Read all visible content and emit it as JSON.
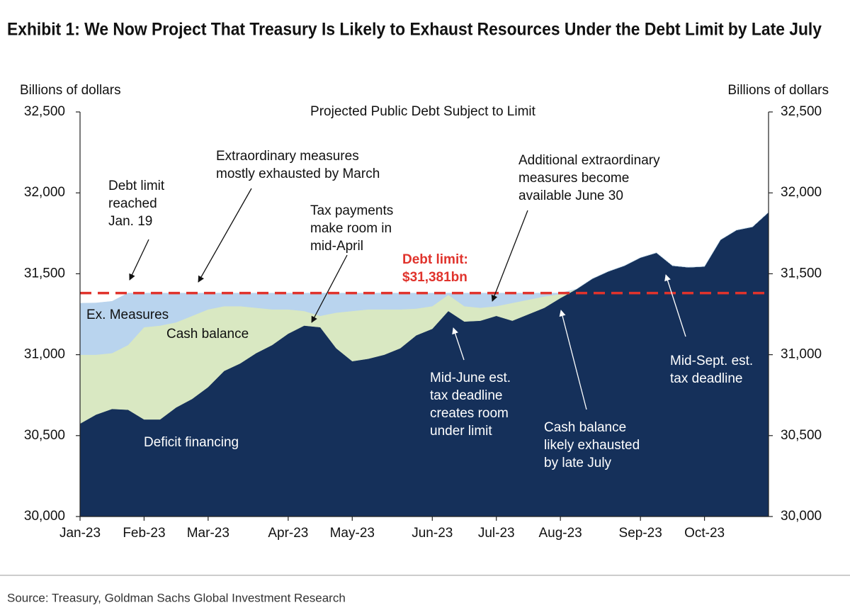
{
  "chart_data": {
    "type": "stacked_area",
    "title": "Exhibit 1: We Now Project That Treasury Is Likely to Exhaust Resources Under the Debt Limit by Late July",
    "subtitle": "Projected Public Debt Subject to Limit",
    "ylabel": "Billions of dollars",
    "y2label": "Billions of dollars",
    "source": "Source: Treasury, Goldman Sachs Global Investment Research",
    "categories": [
      "Jan-23",
      null,
      null,
      null,
      "Feb-23",
      null,
      null,
      null,
      "Mar-23",
      null,
      null,
      null,
      null,
      "Apr-23",
      null,
      null,
      null,
      "May-23",
      null,
      null,
      null,
      null,
      "Jun-23",
      null,
      null,
      null,
      "Jul-23",
      null,
      null,
      null,
      "Aug-23",
      null,
      null,
      null,
      null,
      "Sep-23",
      null,
      null,
      null,
      "Oct-23",
      null,
      null,
      null,
      null
    ],
    "series": [
      {
        "name": "Deficit financing",
        "color": "#15305a",
        "values": [
          30574,
          30630,
          30665,
          30660,
          30600,
          30600,
          30674,
          30727,
          30800,
          30900,
          30946,
          31010,
          31060,
          31130,
          31180,
          31170,
          31040,
          30960,
          30975,
          31000,
          31040,
          31120,
          31160,
          31270,
          31205,
          31210,
          31240,
          31210,
          31250,
          31290,
          31350,
          31405,
          31470,
          31515,
          31550,
          31600,
          31630,
          31550,
          31540,
          31545,
          31710,
          31770,
          31790,
          31880
        ]
      },
      {
        "name": "Cash balance",
        "color": "#d9e8c2",
        "values": [
          426,
          370,
          345,
          400,
          570,
          580,
          526,
          513,
          480,
          400,
          354,
          280,
          220,
          150,
          90,
          70,
          220,
          310,
          305,
          280,
          240,
          165,
          140,
          100,
          95,
          80,
          60,
          110,
          90,
          70,
          25,
          0,
          0,
          0,
          0,
          0,
          0,
          0,
          0,
          0,
          0,
          0,
          0,
          0
        ]
      },
      {
        "name": "Ex. Measures",
        "color": "#b9d4ee",
        "values": [
          318,
          320,
          320,
          321,
          211,
          201,
          181,
          141,
          101,
          81,
          81,
          91,
          101,
          101,
          111,
          141,
          121,
          111,
          101,
          101,
          101,
          96,
          81,
          11,
          81,
          91,
          81,
          61,
          41,
          21,
          6,
          0,
          0,
          0,
          0,
          0,
          0,
          0,
          0,
          0,
          0,
          0,
          0,
          0
        ]
      }
    ],
    "reference_line": {
      "name": "Debt limit:",
      "value": 31381,
      "value_label": "$31,381bn",
      "color": "#e0332c"
    },
    "ylim": [
      30000,
      32500
    ],
    "yticks": [
      {
        "value": 30000,
        "label": "30,000"
      },
      {
        "value": 30500,
        "label": "30,500"
      },
      {
        "value": 31000,
        "label": "31,000"
      },
      {
        "value": 31500,
        "label": "31,500"
      },
      {
        "value": 32000,
        "label": "32,000"
      },
      {
        "value": 32500,
        "label": "32,500"
      }
    ],
    "y2lim": [
      30000,
      32500
    ],
    "y2ticks": [
      {
        "value": 30000,
        "label": "30,000"
      },
      {
        "value": 30500,
        "label": "30,500"
      },
      {
        "value": 31000,
        "label": "31,000"
      },
      {
        "value": 31500,
        "label": "31,500"
      },
      {
        "value": 32000,
        "label": "32,000"
      },
      {
        "value": 32500,
        "label": "32,500"
      }
    ],
    "grid": false,
    "annotations": [
      [
        "Debt limit",
        "reached",
        "Jan. 19"
      ],
      [
        "Extraordinary measures",
        "mostly exhausted by March"
      ],
      [
        "Tax payments",
        "make room in",
        "mid-April"
      ],
      [
        "Additional extraordinary",
        "measures become",
        "available June 30"
      ],
      [
        "Mid-June est.",
        "tax deadline",
        "creates room",
        "under limit"
      ],
      [
        "Cash balance",
        "likely exhausted",
        "by late July"
      ],
      [
        "Mid-Sept. est.",
        "tax deadline"
      ]
    ]
  }
}
